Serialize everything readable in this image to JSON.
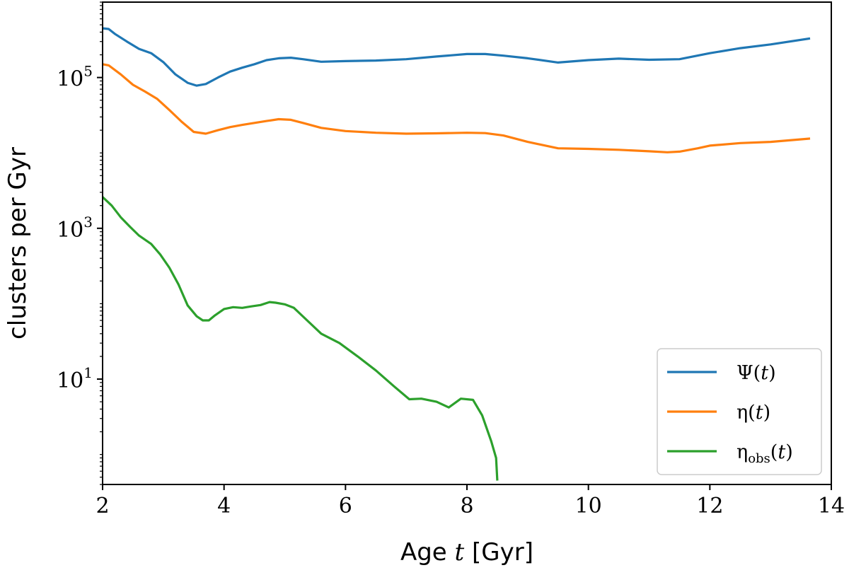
{
  "chart_data": {
    "type": "line",
    "xlabel_prefix": "Age",
    "xlabel_var": "t",
    "xlabel_suffix": "[Gyr]",
    "ylabel": "clusters per Gyr",
    "xlim": [
      2,
      14
    ],
    "ylim": [
      0.4,
      1000000
    ],
    "yscale": "log",
    "x_ticks": [
      2,
      4,
      6,
      8,
      10,
      12,
      14
    ],
    "y_ticks": [
      {
        "value": 100000,
        "base": "10",
        "exp": "5"
      },
      {
        "value": 1000,
        "base": "10",
        "exp": "3"
      },
      {
        "value": 10,
        "base": "10",
        "exp": "1"
      }
    ],
    "legend_position": "lower-right",
    "series": [
      {
        "name": "Ψ(t)",
        "legend_main": "Ψ(",
        "legend_var": "t",
        "legend_sub": "",
        "legend_close": ")",
        "color": "#1f77b4",
        "x": [
          2.0,
          2.1,
          2.2,
          2.4,
          2.6,
          2.8,
          3.0,
          3.2,
          3.4,
          3.55,
          3.7,
          3.9,
          4.1,
          4.3,
          4.5,
          4.7,
          4.9,
          5.1,
          5.3,
          5.6,
          6.0,
          6.5,
          7.0,
          7.5,
          8.0,
          8.3,
          8.6,
          9.0,
          9.5,
          10.0,
          10.5,
          11.0,
          11.5,
          12.0,
          12.5,
          13.0,
          13.65
        ],
        "y": [
          450000,
          440000,
          380000,
          300000,
          240000,
          210000,
          160000,
          110000,
          85000,
          78000,
          82000,
          100000,
          120000,
          135000,
          150000,
          170000,
          180000,
          183000,
          175000,
          162000,
          165000,
          168000,
          175000,
          190000,
          205000,
          205000,
          195000,
          180000,
          158000,
          170000,
          178000,
          172000,
          175000,
          210000,
          245000,
          275000,
          330000
        ]
      },
      {
        "name": "η(t)",
        "legend_main": "η(",
        "legend_var": "t",
        "legend_sub": "",
        "legend_close": ")",
        "color": "#ff7f0e",
        "x": [
          2.0,
          2.1,
          2.3,
          2.5,
          2.7,
          2.9,
          3.1,
          3.3,
          3.5,
          3.7,
          3.9,
          4.1,
          4.3,
          4.5,
          4.7,
          4.9,
          5.1,
          5.3,
          5.6,
          6.0,
          6.5,
          7.0,
          7.5,
          8.0,
          8.3,
          8.6,
          9.0,
          9.5,
          10.0,
          10.5,
          11.0,
          11.3,
          11.5,
          11.8,
          12.0,
          12.5,
          13.0,
          13.65
        ],
        "y": [
          150000,
          145000,
          110000,
          80000,
          65000,
          52000,
          37000,
          26000,
          19000,
          18000,
          20000,
          22000,
          23500,
          25000,
          26500,
          28000,
          27500,
          25000,
          21500,
          19500,
          18500,
          18000,
          18200,
          18500,
          18300,
          17000,
          14000,
          11500,
          11300,
          11000,
          10500,
          10200,
          10400,
          11500,
          12500,
          13500,
          14000,
          15500
        ]
      },
      {
        "name": "η_obs(t)",
        "legend_main": "η",
        "legend_var": "t",
        "legend_sub": "obs",
        "legend_close": ")",
        "color": "#2ca02c",
        "x": [
          2.0,
          2.15,
          2.3,
          2.45,
          2.6,
          2.8,
          2.95,
          3.1,
          3.25,
          3.4,
          3.55,
          3.65,
          3.75,
          3.85,
          4.0,
          4.15,
          4.3,
          4.45,
          4.6,
          4.75,
          4.85,
          5.0,
          5.15,
          5.35,
          5.6,
          5.9,
          6.2,
          6.5,
          6.8,
          7.05,
          7.25,
          7.5,
          7.7,
          7.9,
          8.1,
          8.25,
          8.4,
          8.48,
          8.5
        ],
        "y": [
          2600,
          2000,
          1400,
          1050,
          800,
          620,
          450,
          300,
          180,
          95,
          68,
          60,
          60,
          70,
          85,
          90,
          88,
          92,
          96,
          105,
          103,
          98,
          88,
          62,
          40,
          30,
          20,
          13,
          8,
          5.4,
          5.5,
          5.0,
          4.2,
          5.5,
          5.3,
          3.3,
          1.5,
          0.9,
          0.45
        ]
      }
    ]
  }
}
